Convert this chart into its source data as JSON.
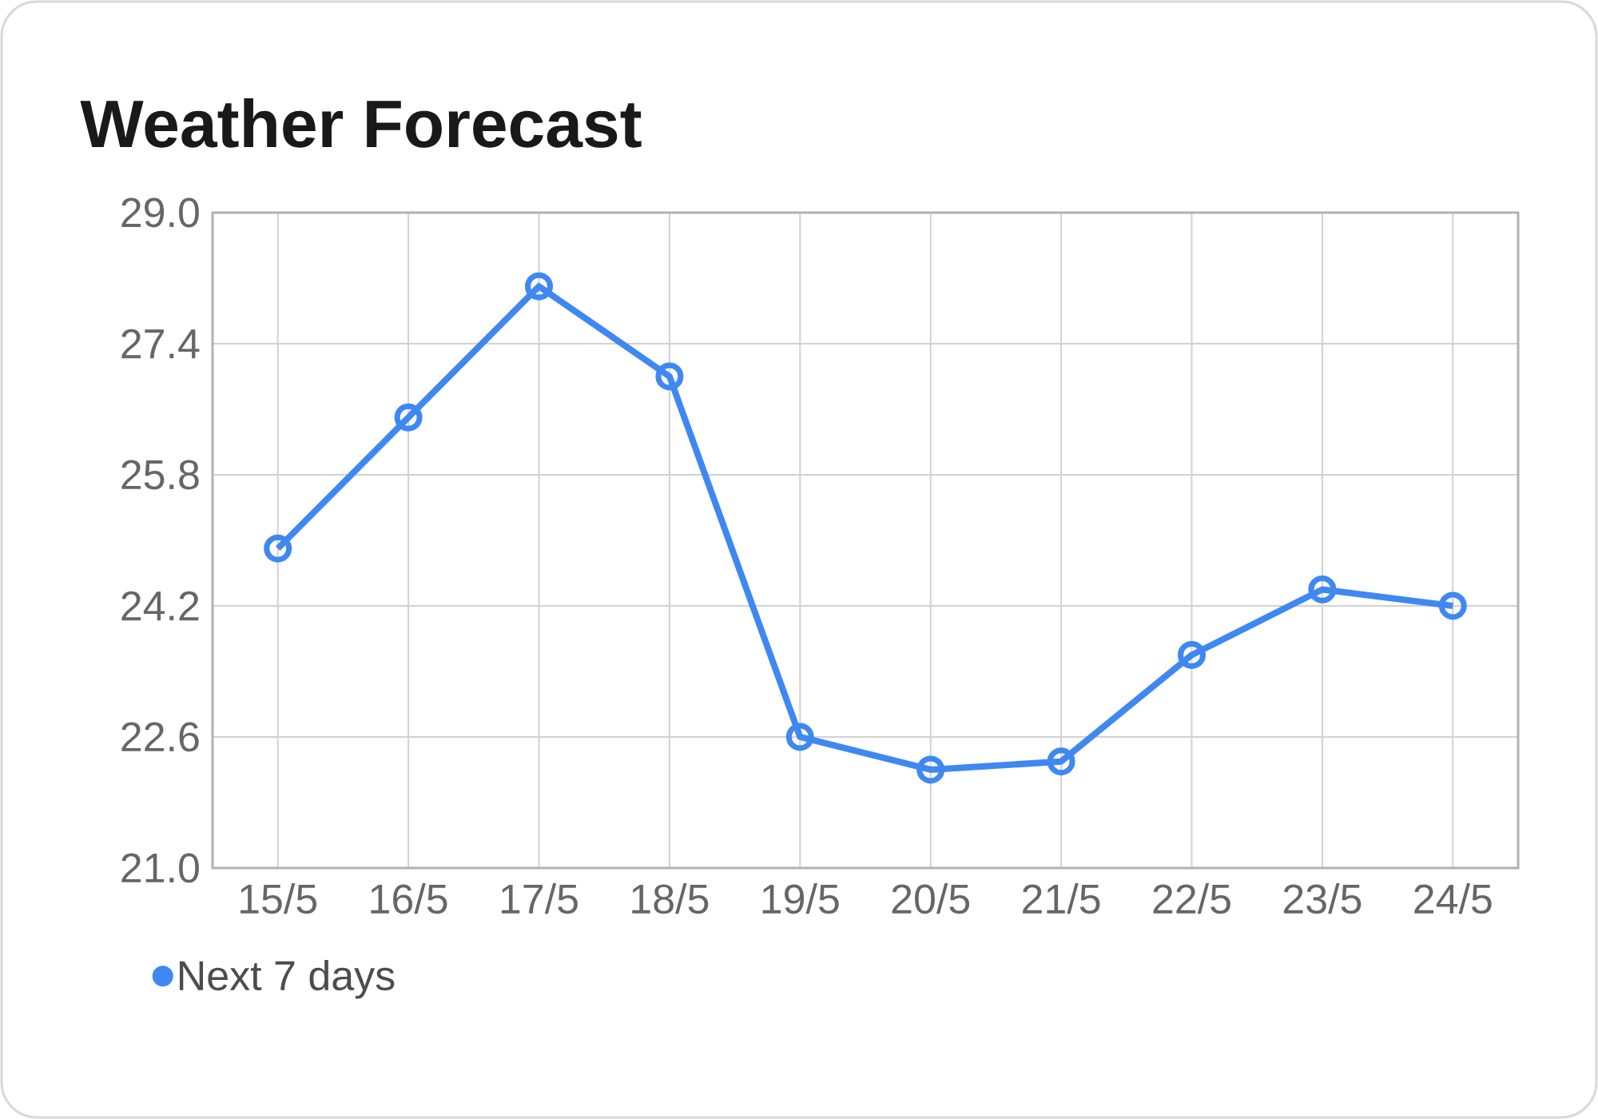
{
  "chart_data": {
    "type": "line",
    "title": "Weather Forecast",
    "categories": [
      "15/5",
      "16/5",
      "17/5",
      "18/5",
      "19/5",
      "20/5",
      "21/5",
      "22/5",
      "23/5",
      "24/5"
    ],
    "series": [
      {
        "name": "Next 7 days",
        "color": "#3f88f2",
        "values": [
          24.9,
          26.5,
          28.1,
          27.0,
          22.6,
          22.2,
          22.3,
          23.6,
          24.4,
          24.2
        ]
      }
    ],
    "ylim": [
      21,
      29
    ],
    "yticks": [
      {
        "value": 21,
        "label": "21.0"
      },
      22.6,
      24.2,
      25.8,
      27.4,
      {
        "value": 29,
        "label": "29.0"
      }
    ],
    "grid": true,
    "legend": "bottom left",
    "marker": "circle",
    "line_style": "solid"
  }
}
